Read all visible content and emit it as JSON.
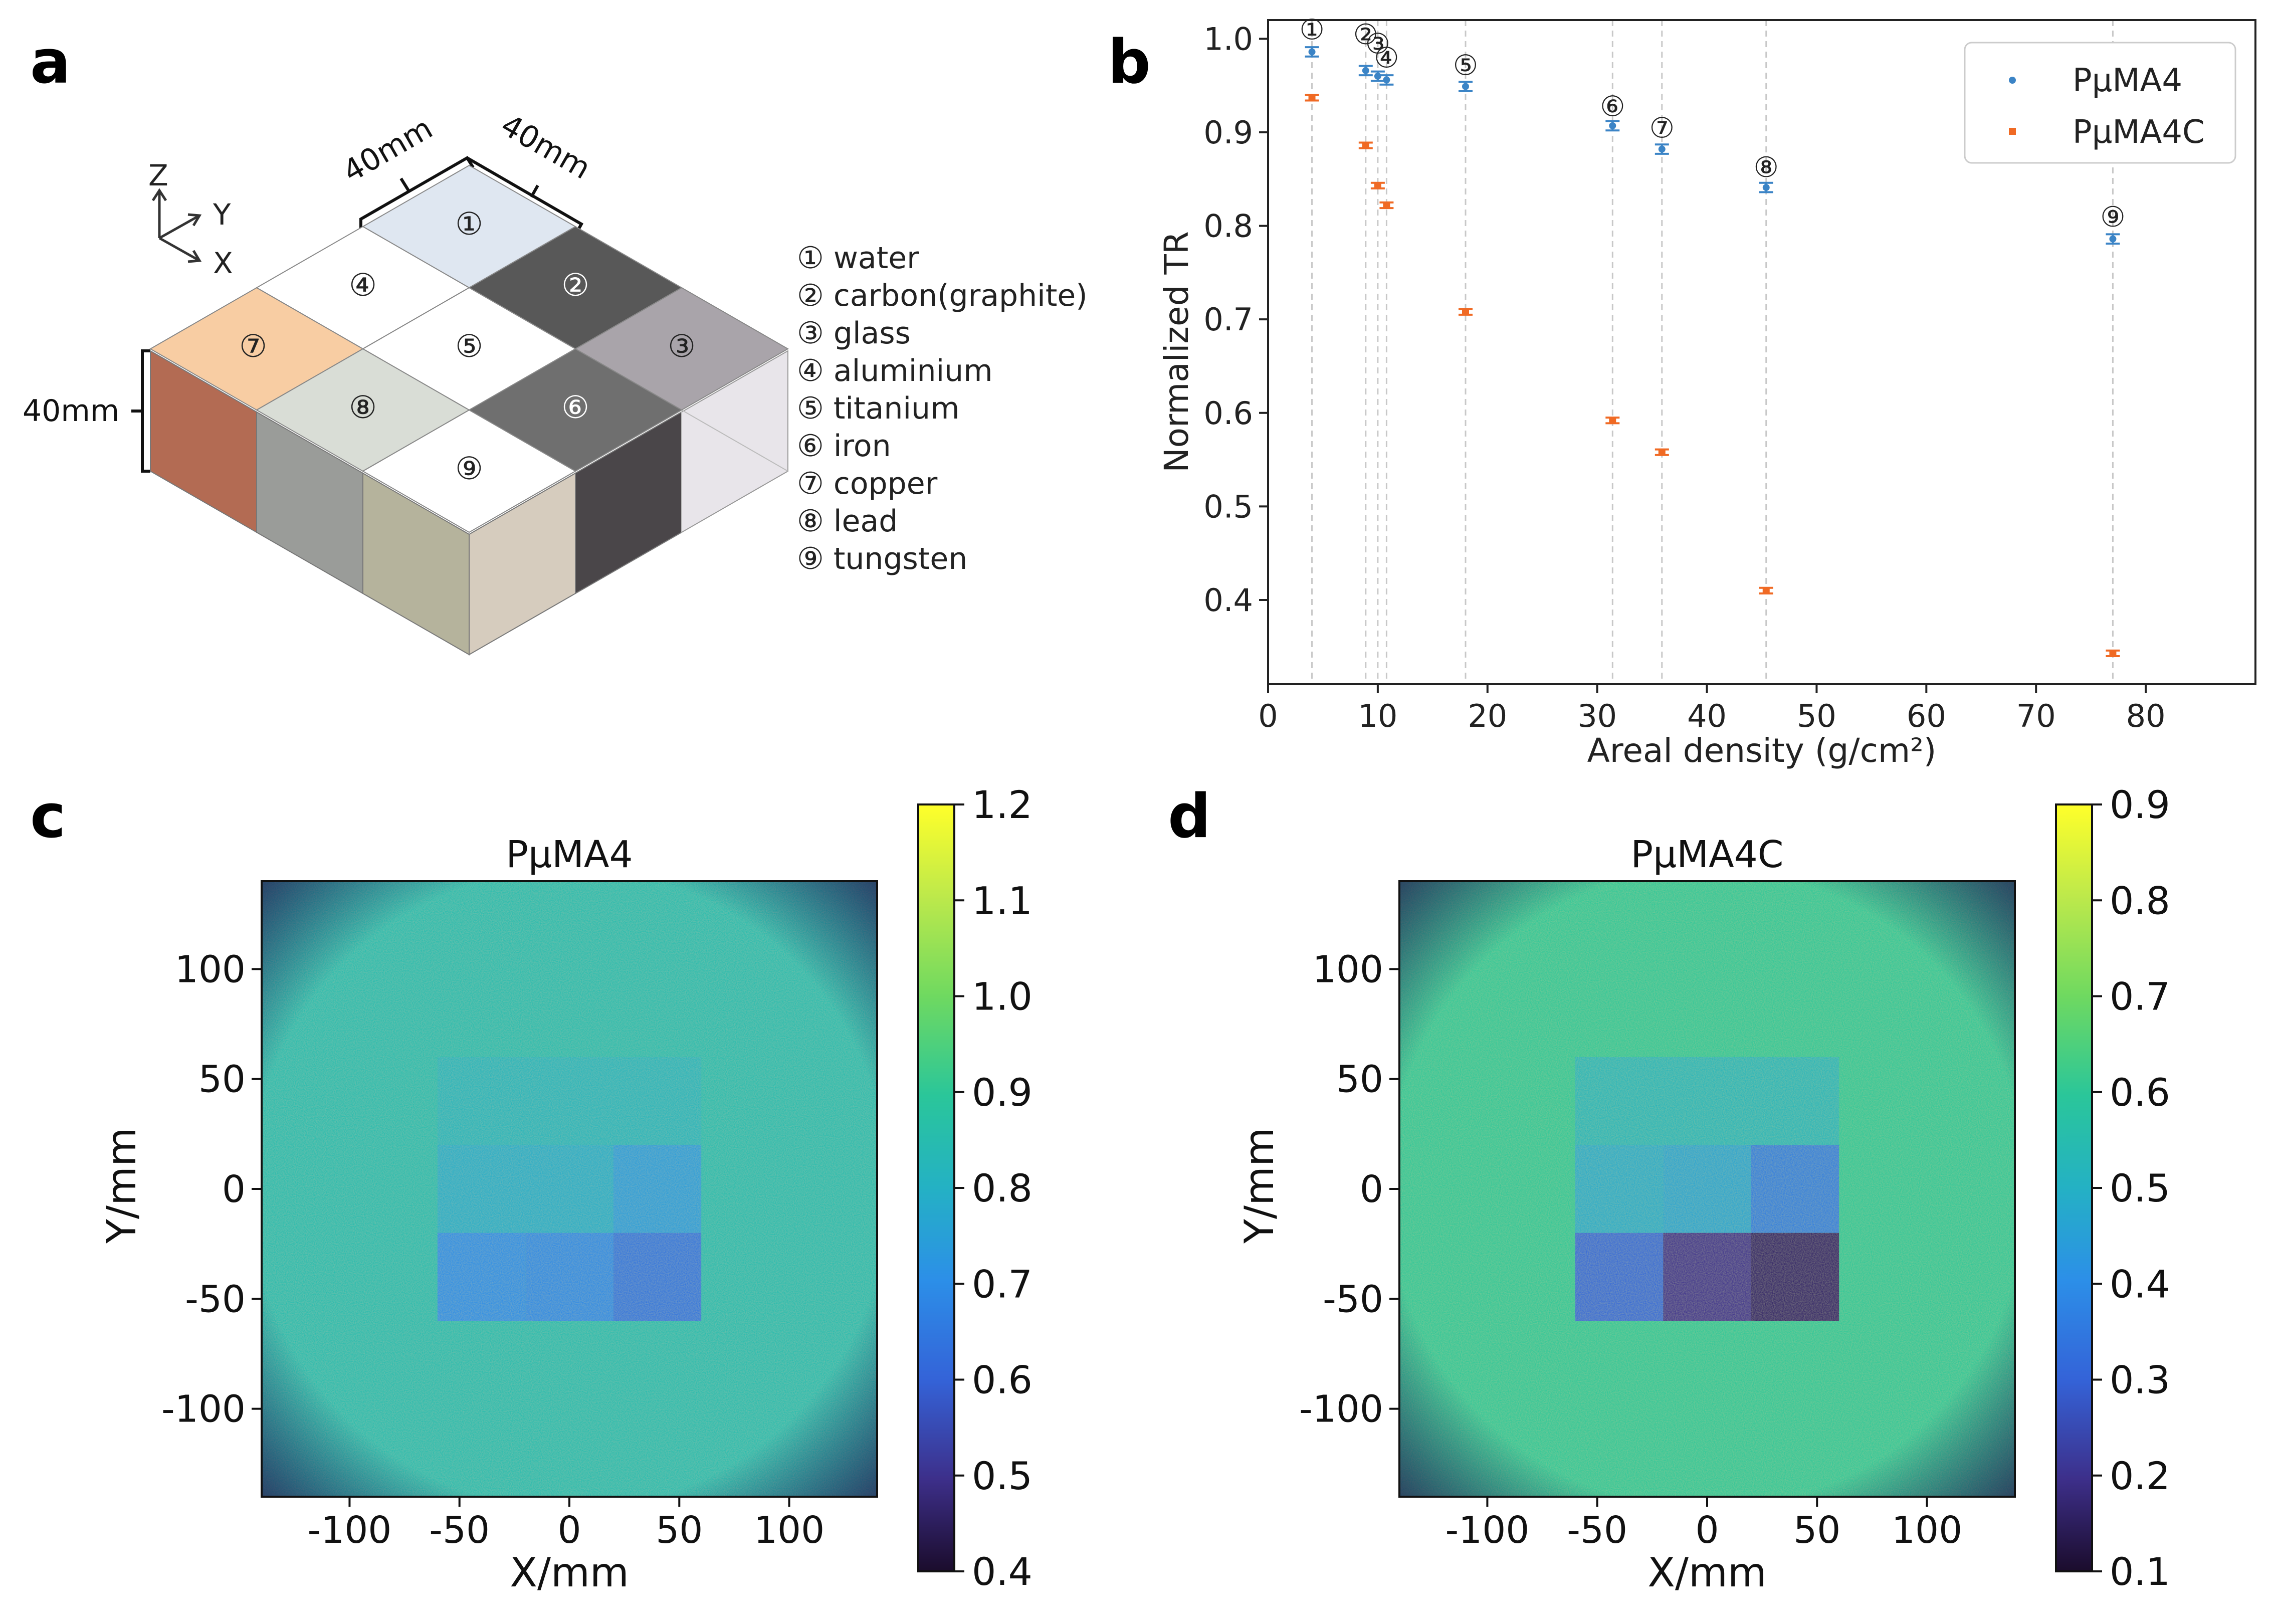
{
  "panel_labels": [
    "a",
    "b",
    "c",
    "d"
  ],
  "panel_a": {
    "axes": {
      "z": "Z",
      "y": "Y",
      "x": "X"
    },
    "dimensions": {
      "top_left": "40mm",
      "top_right": "40mm",
      "height": "40mm"
    },
    "cells": [
      {
        "id": "①",
        "color": "#dfe7f1"
      },
      {
        "id": "②",
        "color": "#585858"
      },
      {
        "id": "③",
        "color": "#a9a4aa"
      },
      {
        "id": "④",
        "color": "#ffffff"
      },
      {
        "id": "⑤",
        "color": "#ffffff"
      },
      {
        "id": "⑥",
        "color": "#6f6f6f"
      },
      {
        "id": "⑦",
        "color": "#f8cda3"
      },
      {
        "id": "⑧",
        "color": "#d9ddd6"
      },
      {
        "id": "⑨",
        "color": "#ffffff"
      }
    ],
    "legend": [
      "① water",
      "② carbon(graphite)",
      "③ glass",
      "④ aluminium",
      "⑤ titanium",
      "⑥ iron",
      "⑦ copper",
      "⑧ lead",
      "⑨ tungsten"
    ]
  },
  "chart_data": [
    {
      "panel": "b",
      "type": "scatter",
      "title": "",
      "xlabel": "Areal density (g/cm²)",
      "ylabel": "Normalized TR",
      "xlim": [
        0,
        90
      ],
      "ylim": [
        0.31,
        1.02
      ],
      "xticks": [
        0,
        10,
        20,
        30,
        40,
        50,
        60,
        70,
        80
      ],
      "yticks": [
        0.4,
        0.5,
        0.6,
        0.7,
        0.8,
        0.9,
        1.0
      ],
      "ytick_labels": [
        "0.4",
        "0.5",
        "0.6",
        "0.7",
        "0.8",
        "0.9",
        "1.0"
      ],
      "legend_position": "top-right",
      "material_markers": [
        {
          "label": "①",
          "x": 4.0,
          "label_y": 1.01
        },
        {
          "label": "②",
          "x": 8.9,
          "label_y": 1.005
        },
        {
          "label": "③",
          "x": 10.0,
          "label_y": 0.995
        },
        {
          "label": "④",
          "x": 10.8,
          "label_y": 0.98
        },
        {
          "label": "⑤",
          "x": 18.0,
          "label_y": 0.972
        },
        {
          "label": "⑥",
          "x": 31.4,
          "label_y": 0.928
        },
        {
          "label": "⑦",
          "x": 35.9,
          "label_y": 0.905
        },
        {
          "label": "⑧",
          "x": 45.4,
          "label_y": 0.863
        },
        {
          "label": "⑨",
          "x": 77.0,
          "label_y": 0.81
        }
      ],
      "series": [
        {
          "name": "PμMA4",
          "color": "#3b84c6",
          "x": [
            4.0,
            8.9,
            10.0,
            10.8,
            18.0,
            31.4,
            35.9,
            45.4,
            77.0
          ],
          "y": [
            0.986,
            0.966,
            0.96,
            0.956,
            0.949,
            0.907,
            0.882,
            0.841,
            0.786
          ],
          "err": [
            0.005,
            0.005,
            0.005,
            0.005,
            0.005,
            0.005,
            0.005,
            0.005,
            0.005
          ]
        },
        {
          "name": "PμMA4C",
          "color": "#f06a24",
          "x": [
            4.0,
            8.9,
            10.0,
            10.8,
            18.0,
            31.4,
            35.9,
            45.4,
            77.0
          ],
          "y": [
            0.937,
            0.886,
            0.843,
            0.822,
            0.708,
            0.592,
            0.558,
            0.41,
            0.343
          ],
          "err": [
            0.003,
            0.003,
            0.003,
            0.003,
            0.003,
            0.003,
            0.003,
            0.003,
            0.003
          ]
        }
      ]
    },
    {
      "panel": "c",
      "type": "heatmap",
      "title": "PμMA4",
      "xlabel": "X/mm",
      "ylabel": "Y/mm",
      "xlim": [
        -140,
        140
      ],
      "ylim": [
        -140,
        140
      ],
      "xticks": [
        -100,
        -50,
        0,
        50,
        100
      ],
      "yticks": [
        100,
        50,
        0,
        -50,
        -100
      ],
      "colorbar": {
        "min": 0.4,
        "max": 1.2,
        "ticks": [
          "1.2",
          "1.1",
          "1.0",
          "0.9",
          "0.8",
          "0.7",
          "0.6",
          "0.5",
          "0.4"
        ]
      },
      "background_value": 0.85,
      "block_extent": {
        "x": [
          -60,
          60
        ],
        "y": [
          -60,
          60
        ]
      },
      "blocks": [
        {
          "x": [
            -60,
            60
          ],
          "y": [
            20,
            60
          ],
          "value": 0.82
        },
        {
          "x": [
            -60,
            20
          ],
          "y": [
            -20,
            20
          ],
          "value": 0.79
        },
        {
          "x": [
            20,
            60
          ],
          "y": [
            -20,
            20
          ],
          "value": 0.74
        },
        {
          "x": [
            -60,
            -20
          ],
          "y": [
            -60,
            -20
          ],
          "value": 0.7
        },
        {
          "x": [
            -20,
            20
          ],
          "y": [
            -60,
            -20
          ],
          "value": 0.69
        },
        {
          "x": [
            20,
            60
          ],
          "y": [
            -60,
            -20
          ],
          "value": 0.64
        }
      ]
    },
    {
      "panel": "d",
      "type": "heatmap",
      "title": "PμMA4C",
      "xlabel": "X/mm",
      "ylabel": "Y/mm",
      "xlim": [
        -140,
        140
      ],
      "ylim": [
        -140,
        140
      ],
      "xticks": [
        -100,
        -50,
        0,
        50,
        100
      ],
      "yticks": [
        100,
        50,
        0,
        -50,
        -100
      ],
      "colorbar": {
        "min": 0.1,
        "max": 0.9,
        "ticks": [
          "0.9",
          "0.8",
          "0.7",
          "0.6",
          "0.5",
          "0.4",
          "0.3",
          "0.2",
          "0.1"
        ]
      },
      "background_value": 0.6,
      "block_extent": {
        "x": [
          -60,
          60
        ],
        "y": [
          -60,
          60
        ]
      },
      "blocks": [
        {
          "x": [
            -60,
            60
          ],
          "y": [
            20,
            60
          ],
          "value": 0.52
        },
        {
          "x": [
            -60,
            -20
          ],
          "y": [
            -20,
            20
          ],
          "value": 0.48
        },
        {
          "x": [
            -20,
            20
          ],
          "y": [
            -20,
            20
          ],
          "value": 0.46
        },
        {
          "x": [
            20,
            60
          ],
          "y": [
            -20,
            20
          ],
          "value": 0.36
        },
        {
          "x": [
            -60,
            -20
          ],
          "y": [
            -60,
            -20
          ],
          "value": 0.31
        },
        {
          "x": [
            -20,
            20
          ],
          "y": [
            -60,
            -20
          ],
          "value": 0.2
        },
        {
          "x": [
            20,
            60
          ],
          "y": [
            -60,
            -20
          ],
          "value": 0.16
        }
      ]
    }
  ]
}
